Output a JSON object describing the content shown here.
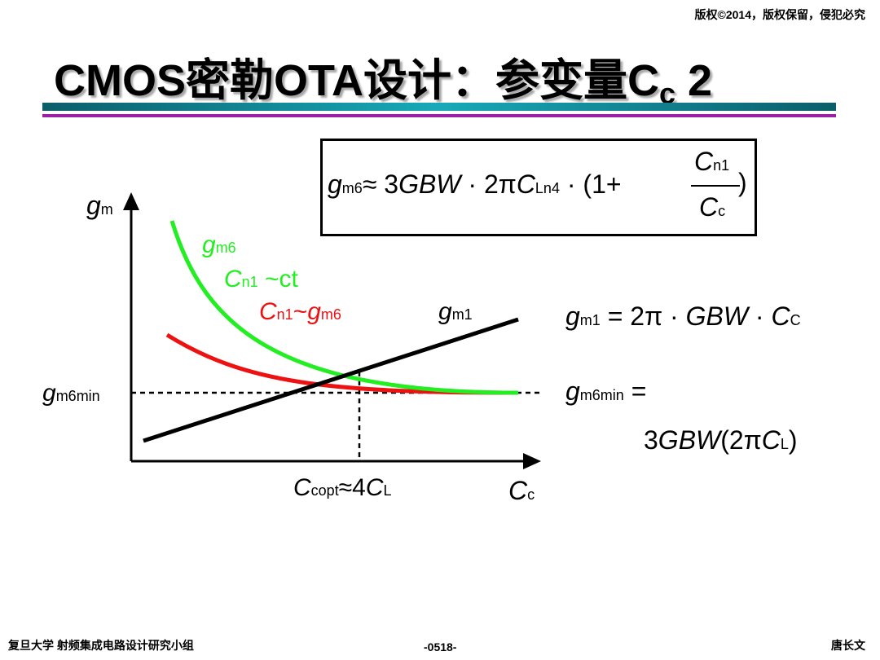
{
  "header": {
    "copyright": "版权©2014，版权保留，侵犯必究"
  },
  "slide": {
    "title_main": "CMOS密勒OTA设计：参变量C",
    "title_sub": "c",
    "title_num": " 2"
  },
  "formula_box": {
    "g": "g",
    "g_sub": "m6",
    "approx": "≈ 3",
    "gbw": "GBW",
    "mid": " · 2π",
    "c": "C",
    "c_sub": "Ln4",
    "tail": " · (1+",
    "num": "C",
    "num_sub": "n1",
    "den": "C",
    "den_sub": "c",
    "close": ")"
  },
  "graph": {
    "y_axis": "g",
    "y_axis_sub": "m",
    "x_axis": "C",
    "x_axis_sub": "c",
    "label_gm6": "g",
    "label_gm6_sub": "m6",
    "label_cn1_ct_c": "C",
    "label_cn1_ct_sub": "n1",
    "label_cn1_ct_tail": " ~ct",
    "label_cn1_gm6_c": "C",
    "label_cn1_gm6_sub": "n1",
    "label_cn1_gm6_mid": "~",
    "label_cn1_gm6_g": "g",
    "label_cn1_gm6_g_sub": "m6",
    "label_gm1": "g",
    "label_gm1_sub": "m1",
    "label_gm6min": "g",
    "label_gm6min_sub": "m6min",
    "copt_c": "C",
    "copt_sub": "copt",
    "copt_mid": "≈4",
    "copt_c2": "C",
    "copt_sub2": "L",
    "colors": {
      "gm6_curve": "#22ee22",
      "cn1_curve": "#ee1111",
      "gm1_line": "#000000"
    }
  },
  "eq_gm1": {
    "g": "g",
    "g_sub": "m1",
    "eq": " = 2π · ",
    "gbw": "GBW",
    "dot": " · ",
    "c": "C",
    "c_sub": "C"
  },
  "eq_gm6min": {
    "g": "g",
    "g_sub": "m6min",
    "eq": " =",
    "line2_a": "3",
    "gbw": "GBW",
    "line2_b": "(2π",
    "c": "C",
    "c_sub": "L",
    "close": ")"
  },
  "footer": {
    "left": "复旦大学   射频集成电路设计研究小组",
    "center": "-0518-",
    "right": "唐长文"
  }
}
